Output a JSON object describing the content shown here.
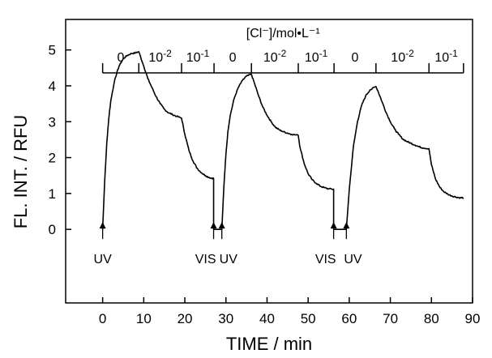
{
  "chart_data": {
    "type": "line",
    "xlabel": "TIME / min",
    "ylabel": "FL. INT. / RFU",
    "xlim": [
      -9,
      90
    ],
    "ylim": [
      -2.05,
      5.85
    ],
    "xticks": [
      0,
      10,
      20,
      30,
      40,
      50,
      60,
      70,
      80,
      90
    ],
    "yticks": [
      0,
      1,
      2,
      3,
      4,
      5
    ],
    "concentration_bar": {
      "title": "[Cl⁻]/mol•L⁻¹",
      "boundaries": [
        0,
        8.8,
        19.2,
        27.1,
        36.2,
        47.6,
        56.3,
        66.5,
        79.4,
        87.8
      ],
      "segments": [
        {
          "base": "0",
          "exp": ""
        },
        {
          "base": "10",
          "exp": "-2"
        },
        {
          "base": "10",
          "exp": "-1"
        },
        {
          "base": "0",
          "exp": ""
        },
        {
          "base": "10",
          "exp": "-2"
        },
        {
          "base": "10",
          "exp": "-1"
        },
        {
          "base": "0",
          "exp": ""
        },
        {
          "base": "10",
          "exp": "-2"
        },
        {
          "base": "10",
          "exp": "-1"
        }
      ]
    },
    "markers": [
      {
        "x": 0,
        "label": "UV"
      },
      {
        "x": 27.0,
        "label": "VIS"
      },
      {
        "x": 29.0,
        "label": "UV"
      },
      {
        "x": 56.2,
        "label": "VIS"
      },
      {
        "x": 59.3,
        "label": "UV"
      }
    ],
    "series": [
      {
        "x": [
          0,
          0.5,
          1,
          1.5,
          2,
          3,
          4,
          5,
          6,
          7,
          8,
          8.8,
          10,
          11,
          12,
          13,
          14,
          15,
          16,
          17,
          18,
          19.2,
          20,
          21,
          22,
          23,
          24,
          25,
          26,
          27.0,
          27.0,
          28.9,
          29.0,
          29.5,
          30,
          30.5,
          31,
          32,
          33,
          34,
          35,
          36.2,
          37,
          38,
          39,
          40,
          41,
          42,
          43,
          44,
          45,
          46,
          47.6,
          48,
          49,
          50,
          51,
          52,
          53,
          54,
          55,
          56.2,
          56.2,
          59.2,
          59.3,
          60,
          61,
          62,
          63,
          64,
          65,
          66.5,
          67,
          68,
          69,
          70,
          71,
          72,
          73,
          74,
          75,
          76,
          77,
          78,
          79.4,
          80,
          81,
          82,
          83,
          84,
          85,
          86,
          87,
          87.8
        ],
        "y": [
          0,
          1.35,
          2.4,
          3.1,
          3.6,
          4.2,
          4.55,
          4.75,
          4.85,
          4.9,
          4.92,
          4.95,
          4.55,
          4.2,
          3.95,
          3.7,
          3.5,
          3.35,
          3.25,
          3.2,
          3.15,
          3.1,
          2.65,
          2.2,
          1.9,
          1.7,
          1.58,
          1.5,
          1.44,
          1.42,
          0,
          0,
          0,
          1.2,
          2.1,
          2.75,
          3.15,
          3.65,
          3.95,
          4.15,
          4.27,
          4.32,
          4.05,
          3.7,
          3.4,
          3.18,
          3.0,
          2.85,
          2.77,
          2.72,
          2.68,
          2.65,
          2.62,
          2.3,
          1.85,
          1.55,
          1.38,
          1.28,
          1.2,
          1.16,
          1.13,
          1.12,
          0,
          0,
          0,
          1.1,
          2.3,
          3.0,
          3.45,
          3.72,
          3.88,
          3.98,
          3.85,
          3.55,
          3.25,
          3.0,
          2.8,
          2.65,
          2.52,
          2.45,
          2.4,
          2.35,
          2.3,
          2.27,
          2.25,
          1.8,
          1.4,
          1.18,
          1.05,
          0.98,
          0.93,
          0.9,
          0.88,
          0.88
        ]
      }
    ],
    "grid": false,
    "legend": "none"
  }
}
